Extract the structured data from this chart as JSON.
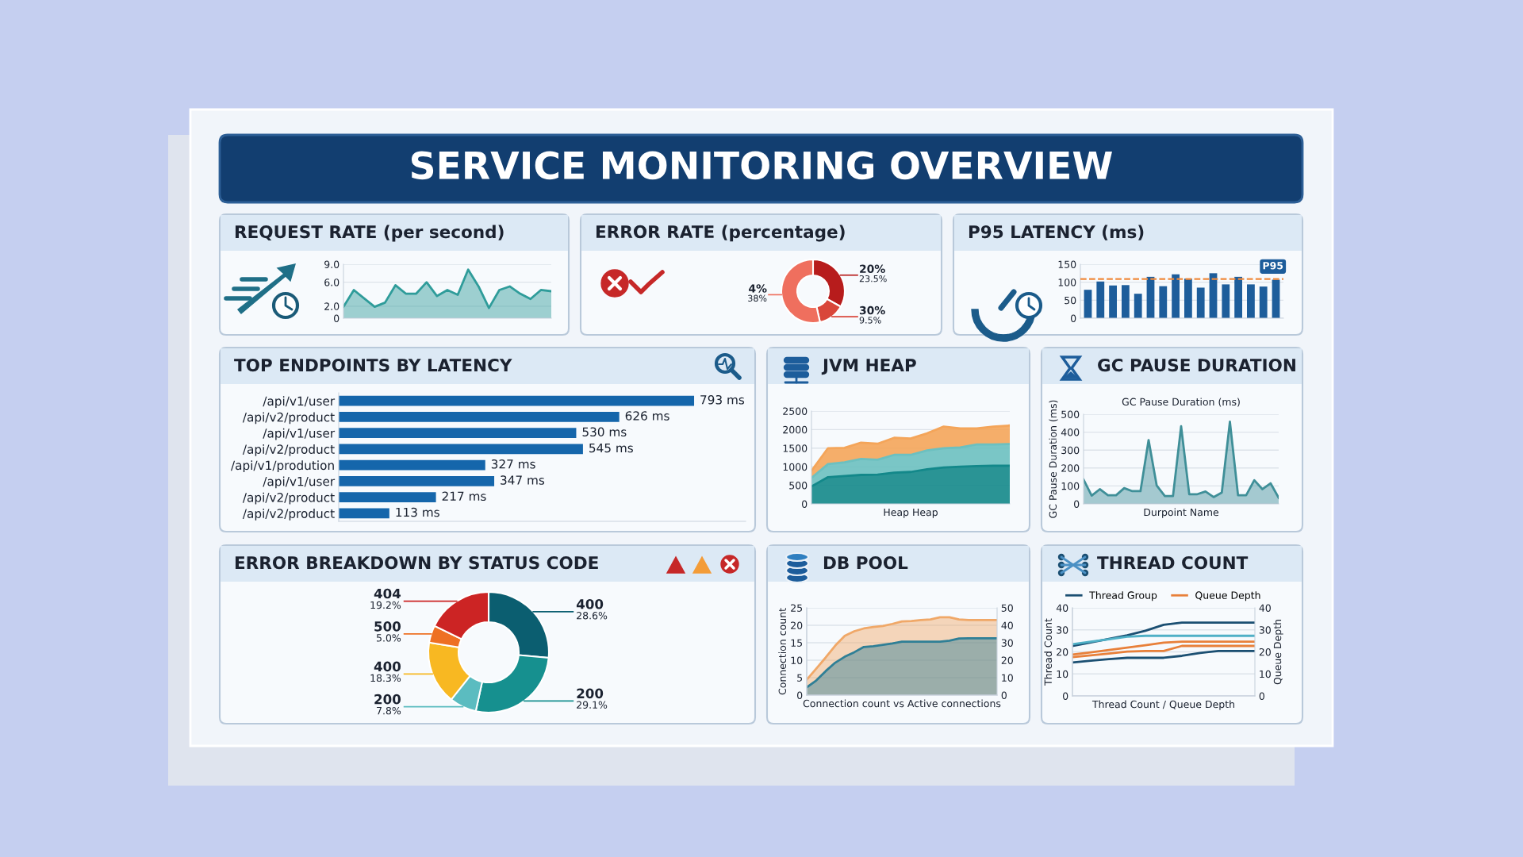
{
  "chart_data": [
    {
      "type": "other",
      "title": "SERVICE MONITORING OVERVIEW"
    },
    {
      "type": "area",
      "title": "REQUEST RATE (per second)",
      "color": "#2f9c9a",
      "categories": [
        null,
        null,
        null,
        null,
        null,
        null,
        null,
        null,
        null,
        null,
        null,
        null,
        null,
        null,
        null,
        null,
        null,
        null,
        null,
        null,
        null
      ],
      "values": [
        1.9,
        4.7,
        3.3,
        1.9,
        2.6,
        5.5,
        4.1,
        4.1,
        6.0,
        3.7,
        4.7,
        3.9,
        8.1,
        5.3,
        1.7,
        4.7,
        5.3,
        4.1,
        3.2,
        4.7,
        4.5
      ],
      "ylim": [
        0,
        9
      ],
      "yticks": [
        0,
        {
          "value": 2,
          "label": "2.0"
        },
        {
          "value": 6,
          "label": "6.0"
        },
        {
          "value": 9,
          "label": "9.0"
        }
      ],
      "grid": "y",
      "tick_labels": "y"
    },
    {
      "type": "donut",
      "title": "ERROR RATE (percentage)",
      "categories": [
        "20%",
        "30%",
        "4%"
      ],
      "values": [
        23.5,
        9.5,
        38
      ],
      "value_labels": [
        "23.5%",
        "9.5%",
        "38%"
      ],
      "colors": [
        "#b71c1c",
        "#d9463a",
        "#ef6f5e"
      ]
    },
    {
      "type": "bar",
      "title": "P95 LATENCY (ms)",
      "categories": [
        null,
        null,
        null,
        null,
        null,
        null,
        null,
        null,
        null,
        null,
        null,
        null,
        null,
        null,
        null,
        null
      ],
      "values": [
        79,
        102,
        91,
        92,
        68,
        115,
        89,
        122,
        110,
        85,
        125,
        94,
        115,
        94,
        88,
        107
      ],
      "color": "#1d5d9b",
      "ylim": [
        0,
        150
      ],
      "yticks": [
        0,
        50,
        100,
        150
      ],
      "grid": "y",
      "ref_lines": [
        {
          "axis": "y",
          "value": 109,
          "label": "P95",
          "color": "#f08a3c",
          "line_style": "dashed"
        }
      ]
    },
    {
      "type": "bar",
      "orientation": "horizontal",
      "title": "TOP ENDPOINTS BY LATENCY",
      "categories": [
        "/api/v1/user",
        "/api/v2/product",
        "/api/v1/user",
        "/api/v2/product",
        "/api/v1/prodution",
        "/api/v1/user",
        "/api/v2/product",
        "/api/v2/product"
      ],
      "values": [
        793,
        626,
        530,
        545,
        327,
        347,
        217,
        113
      ],
      "value_labels": [
        "793 ms",
        "626 ms",
        "530 ms",
        "545 ms",
        "327 ms",
        "347 ms",
        "217 ms",
        "113 ms"
      ],
      "color": "#1566ab",
      "tick_labels": "y"
    },
    {
      "type": "area",
      "stacked": true,
      "title": "JVM HEAP",
      "xlabel": "Heap Heap",
      "categories": [
        null,
        null,
        null,
        null,
        null,
        null,
        null,
        null,
        null,
        null,
        null,
        null,
        null
      ],
      "series": [
        {
          "color": "#13888a",
          "values": [
            470,
            720,
            750,
            780,
            790,
            840,
            860,
            930,
            980,
            1000,
            1020,
            1030,
            1030
          ]
        },
        {
          "color": "#6cc0c0",
          "values": [
            230,
            350,
            370,
            430,
            400,
            480,
            460,
            510,
            520,
            520,
            580,
            570,
            580
          ]
        },
        {
          "color": "#f4a55a",
          "values": [
            190,
            430,
            390,
            440,
            430,
            460,
            440,
            460,
            580,
            510,
            430,
            480,
            500
          ]
        }
      ],
      "ylim": [
        0,
        2500
      ],
      "yticks": [
        0,
        500,
        1000,
        1500,
        2000,
        2500
      ],
      "grid": "y",
      "tick_labels": "y"
    },
    {
      "type": "area",
      "title": "GC PAUSE DURATION",
      "subtitle": "GC Pause Duration (ms)",
      "ylabel": "GC Pause Duration (ms)",
      "xlabel": "Durpoint Name",
      "color": "#3f8f98",
      "categories": [
        null,
        null,
        null,
        null,
        null,
        null,
        null,
        null,
        null,
        null,
        null,
        null,
        null,
        null,
        null,
        null,
        null,
        null,
        null,
        null,
        null,
        null,
        null,
        null,
        null
      ],
      "values": [
        136,
        46,
        82,
        48,
        48,
        88,
        71,
        71,
        356,
        102,
        44,
        44,
        433,
        54,
        54,
        69,
        38,
        63,
        458,
        48,
        48,
        132,
        82,
        115,
        34
      ],
      "ylim": [
        0,
        500
      ],
      "yticks": [
        0,
        100,
        200,
        300,
        400,
        500
      ],
      "grid": "y",
      "tick_labels": "y"
    },
    {
      "type": "donut",
      "title": "ERROR BREAKDOWN BY STATUS CODE",
      "categories": [
        "400",
        "200",
        "200",
        "400",
        "500",
        "404"
      ],
      "values": [
        28.6,
        29.1,
        7.8,
        18.3,
        5.0,
        19.2
      ],
      "value_labels": [
        "28.6%",
        "29.1%",
        "7.8%",
        "18.3%",
        "5.0%",
        "19.2%"
      ],
      "colors": [
        "#0b5e70",
        "#16908f",
        "#5bbcc0",
        "#f8b822",
        "#ee7023",
        "#cc2424"
      ]
    },
    {
      "type": "area",
      "title": "DB POOL",
      "ylabel": "Connection count",
      "xlabel": "Connection count vs Active connections",
      "categories": [
        null,
        null,
        null,
        null,
        null,
        null,
        null,
        null,
        null,
        null,
        null,
        null,
        null,
        null,
        null,
        null,
        null,
        null,
        null,
        null,
        null
      ],
      "series": [
        {
          "color": "#f0a868",
          "values": [
            4.4,
            7.6,
            10.8,
            14.2,
            17.0,
            18.3,
            19.1,
            19.5,
            19.8,
            20.4,
            21.1,
            21.2,
            21.5,
            21.7,
            22.3,
            22.3,
            21.7,
            21.5,
            21.5,
            21.5,
            21.5
          ]
        },
        {
          "color": "#2f7f96",
          "values": [
            2.2,
            4.2,
            6.9,
            9.3,
            11.0,
            12.3,
            13.8,
            14.0,
            14.4,
            14.8,
            15.3,
            15.3,
            15.3,
            15.3,
            15.3,
            15.6,
            16.2,
            16.3,
            16.3,
            16.3,
            16.3
          ]
        }
      ],
      "ylim": [
        0,
        25
      ],
      "yticks": [
        0,
        5,
        10,
        15,
        20,
        25
      ],
      "y2lim": [
        0,
        50
      ],
      "y2ticks": [
        0,
        10,
        20,
        30,
        40,
        50
      ],
      "grid": "y",
      "tick_labels": "y"
    },
    {
      "type": "line",
      "title": "THREAD COUNT",
      "ylabel": "Thread Count",
      "y2label": "Queue Depth",
      "xlabel": "Thread Count / Queue Depth",
      "legend": "top",
      "categories": [
        null,
        null,
        null,
        null,
        null,
        null,
        null,
        null,
        null,
        null,
        null
      ],
      "series": [
        {
          "name": "Thread Group",
          "color": "#1b4f72",
          "values": [
            22.7,
            24.3,
            25.9,
            27.5,
            29.6,
            32.3,
            33.3,
            33.3,
            33.3,
            33.3,
            33.3
          ]
        },
        {
          "color": "#4fb0c6",
          "values": [
            23.5,
            24.6,
            25.7,
            26.9,
            27.3,
            27.3,
            27.3,
            27.3,
            27.3,
            27.3,
            27.3
          ]
        },
        {
          "color": "#1b4f72",
          "values": [
            15.2,
            16.0,
            16.7,
            17.3,
            17.3,
            17.3,
            18.2,
            19.5,
            20.4,
            20.4,
            20.4
          ]
        },
        {
          "name": "Queue Depth",
          "color": "#e8803a",
          "axis": "y2",
          "values": [
            18.8,
            19.8,
            20.9,
            21.9,
            23.0,
            24.2,
            24.6,
            24.6,
            24.6,
            24.6,
            24.6
          ]
        },
        {
          "color": "#e8803a",
          "axis": "y2",
          "values": [
            17.6,
            18.4,
            19.2,
            20.1,
            20.4,
            20.4,
            22.7,
            22.7,
            22.7,
            22.7,
            22.7
          ]
        }
      ],
      "ylim": [
        0,
        40
      ],
      "yticks": [
        0,
        10,
        20,
        30,
        40
      ],
      "y2lim": [
        0,
        40
      ],
      "y2ticks": [
        0,
        10,
        20,
        30,
        40
      ],
      "grid": "y",
      "tick_labels": "y"
    }
  ]
}
